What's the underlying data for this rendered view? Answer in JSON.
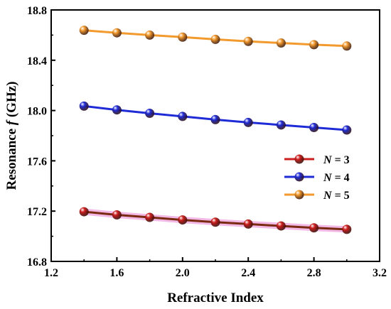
{
  "chart_data": {
    "type": "line",
    "xlabel": "Refractive Index",
    "ylabel": {
      "prefix": "Resonance ",
      "italic": "f",
      "suffix": " (GHz)"
    },
    "xlim": [
      1.2,
      3.2
    ],
    "ylim": [
      16.8,
      18.8
    ],
    "xticks": [
      "1.2",
      "1.6",
      "2.0",
      "2.4",
      "2.8",
      "3.2"
    ],
    "yticks": [
      "16.8",
      "17.2",
      "17.6",
      "18.0",
      "18.4",
      "18.8"
    ],
    "grid": false,
    "legend_position": "right",
    "x": [
      1.4,
      1.6,
      1.8,
      2.0,
      2.2,
      2.4,
      2.6,
      2.8,
      3.0
    ],
    "series": [
      {
        "label_var": "N",
        "label_rest": " = 3",
        "color": "#cc1f1f",
        "values": [
          17.195,
          17.17,
          17.15,
          17.13,
          17.112,
          17.097,
          17.082,
          17.067,
          17.055
        ]
      },
      {
        "label_var": "N",
        "label_rest": " = 4",
        "color": "#1f2bd6",
        "values": [
          18.035,
          18.005,
          17.978,
          17.953,
          17.928,
          17.905,
          17.885,
          17.865,
          17.845
        ]
      },
      {
        "label_var": "N",
        "label_rest": " = 5",
        "color": "#f29a2e",
        "values": [
          18.638,
          18.618,
          18.6,
          18.584,
          18.566,
          18.55,
          18.537,
          18.524,
          18.513
        ]
      }
    ]
  }
}
